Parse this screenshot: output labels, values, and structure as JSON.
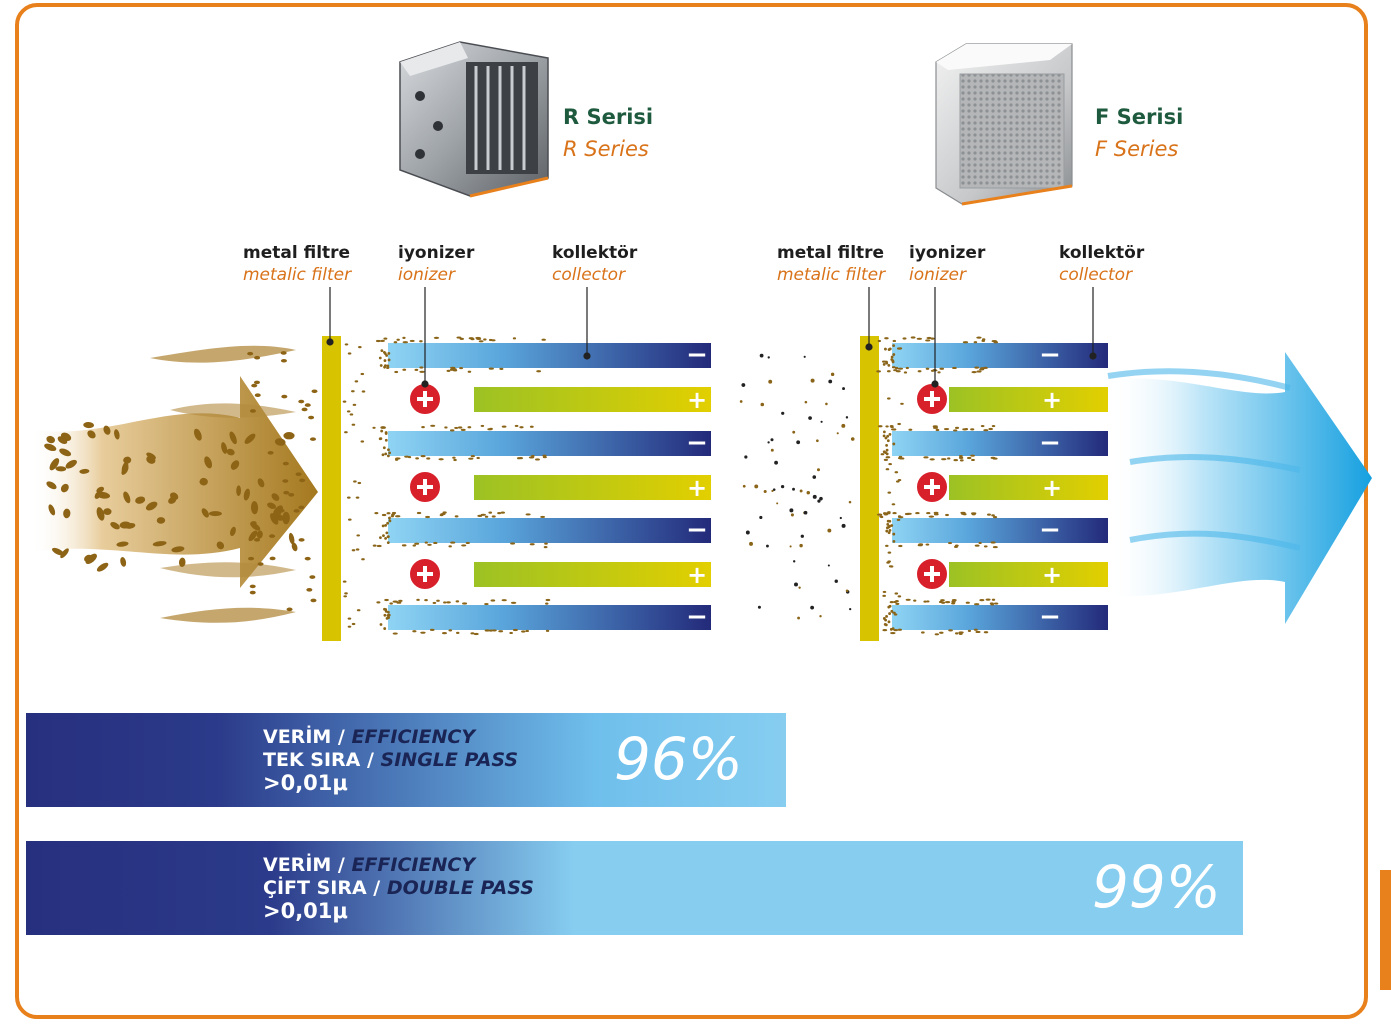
{
  "products": [
    {
      "name_tr": "R Serisi",
      "name_en": "R Series"
    },
    {
      "name_tr": "F Serisi",
      "name_en": "F Series"
    }
  ],
  "labels": {
    "metal_filter_tr": "metal filtre",
    "metal_filter_en": "metalic filter",
    "ionizer_tr": "iyonizer",
    "ionizer_en": "ionizer",
    "collector_tr": "kollektör",
    "collector_en": "collector"
  },
  "signs": {
    "minus": "−",
    "plus": "+"
  },
  "efficiency": [
    {
      "line1_tr": "VERİM / ",
      "line1_en": "EFFICIENCY",
      "line2_tr": "TEK SIRA / ",
      "line2_en": "SINGLE PASS",
      "line3": ">0,01μ",
      "value_label": "96%",
      "value": 96
    },
    {
      "line1_tr": "VERİM / ",
      "line1_en": "EFFICIENCY",
      "line2_tr": "ÇİFT SIRA / ",
      "line2_en": "DOUBLE PASS",
      "line3": ">0,01μ",
      "value_label": "99%",
      "value": 99
    }
  ],
  "colors": {
    "border": "#e8801c",
    "dark_blue": "#27307e",
    "light_blue": "#86cdf0",
    "filter_yellow": "#d8c300",
    "plate_green": "#a8c41c",
    "ion_red": "#d8202b",
    "dust": "#8a6418",
    "clean_air": "#1aa3e2"
  }
}
